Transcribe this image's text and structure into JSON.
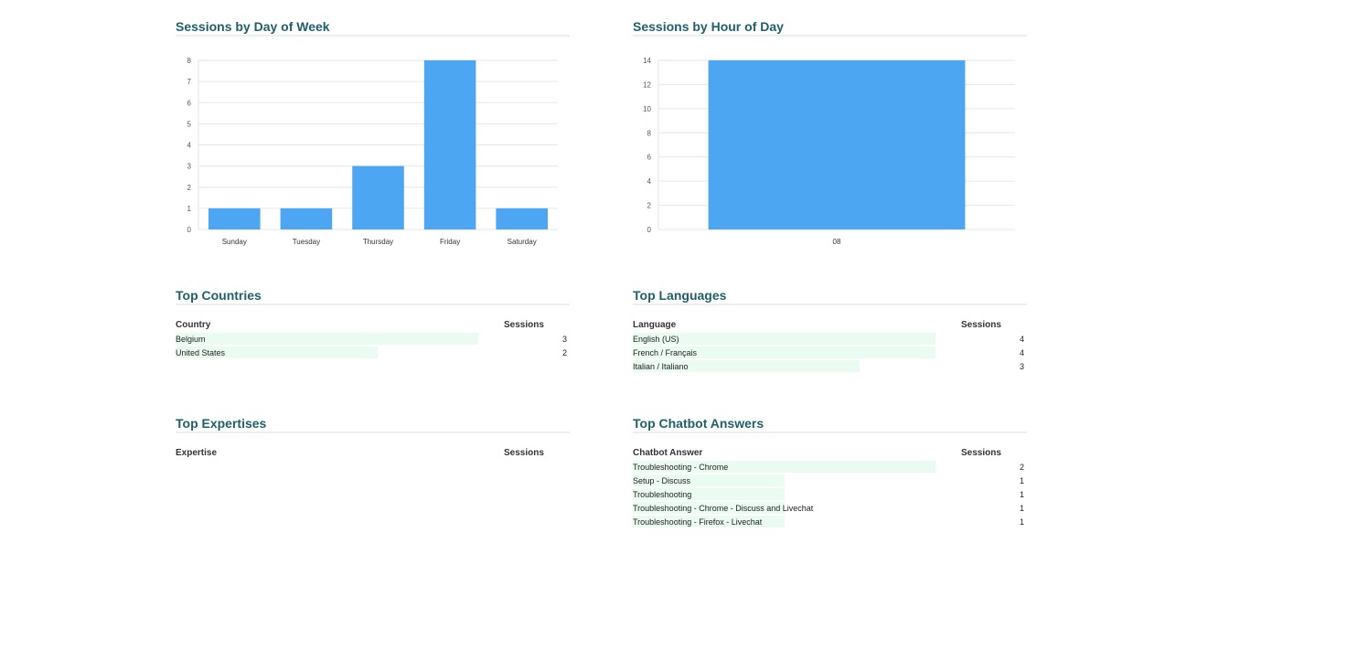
{
  "day_of_week": {
    "title": "Sessions by Day of Week",
    "chart_data": {
      "type": "bar",
      "categories": [
        "Sunday",
        "Tuesday",
        "Thursday",
        "Friday",
        "Saturday"
      ],
      "values": [
        1,
        1,
        3,
        8,
        1
      ],
      "title": "",
      "xlabel": "",
      "ylabel": "",
      "ylim": [
        0,
        8
      ],
      "yticks": [
        0,
        1,
        2,
        3,
        4,
        5,
        6,
        7,
        8
      ],
      "grid": true,
      "bar_color": "#4da6f2"
    }
  },
  "hour_of_day": {
    "title": "Sessions by Hour of Day",
    "chart_data": {
      "type": "bar",
      "categories": [
        "08"
      ],
      "values": [
        14
      ],
      "title": "",
      "xlabel": "",
      "ylabel": "",
      "ylim": [
        0,
        14
      ],
      "yticks": [
        0,
        2,
        4,
        6,
        8,
        10,
        12,
        14
      ],
      "grid": true,
      "bar_color": "#4da6f2"
    }
  },
  "countries": {
    "title": "Top Countries",
    "col_label": "Country",
    "col_sessions": "Sessions",
    "rows": [
      {
        "label": "Belgium",
        "sessions": "3",
        "fraction": 1.0
      },
      {
        "label": "United States",
        "sessions": "2",
        "fraction": 0.667
      }
    ]
  },
  "languages": {
    "title": "Top Languages",
    "col_label": "Language",
    "col_sessions": "Sessions",
    "rows": [
      {
        "label": "English (US)",
        "sessions": "4",
        "fraction": 1.0
      },
      {
        "label": "French / Français",
        "sessions": "4",
        "fraction": 1.0
      },
      {
        "label": "Italian / Italiano",
        "sessions": "3",
        "fraction": 0.75
      }
    ]
  },
  "expertises": {
    "title": "Top Expertises",
    "col_label": "Expertise",
    "col_sessions": "Sessions",
    "rows": []
  },
  "chatbot_answers": {
    "title": "Top Chatbot Answers",
    "col_label": "Chatbot Answer",
    "col_sessions": "Sessions",
    "rows": [
      {
        "label": "Troubleshooting - Chrome",
        "sessions": "2",
        "fraction": 1.0
      },
      {
        "label": "Setup - Discuss",
        "sessions": "1",
        "fraction": 0.5
      },
      {
        "label": "Troubleshooting",
        "sessions": "1",
        "fraction": 0.5
      },
      {
        "label": "Troubleshooting - Chrome - Discuss and Livechat",
        "sessions": "1",
        "fraction": 0.5
      },
      {
        "label": "Troubleshooting - Firefox - Livechat",
        "sessions": "1",
        "fraction": 0.5
      }
    ]
  }
}
